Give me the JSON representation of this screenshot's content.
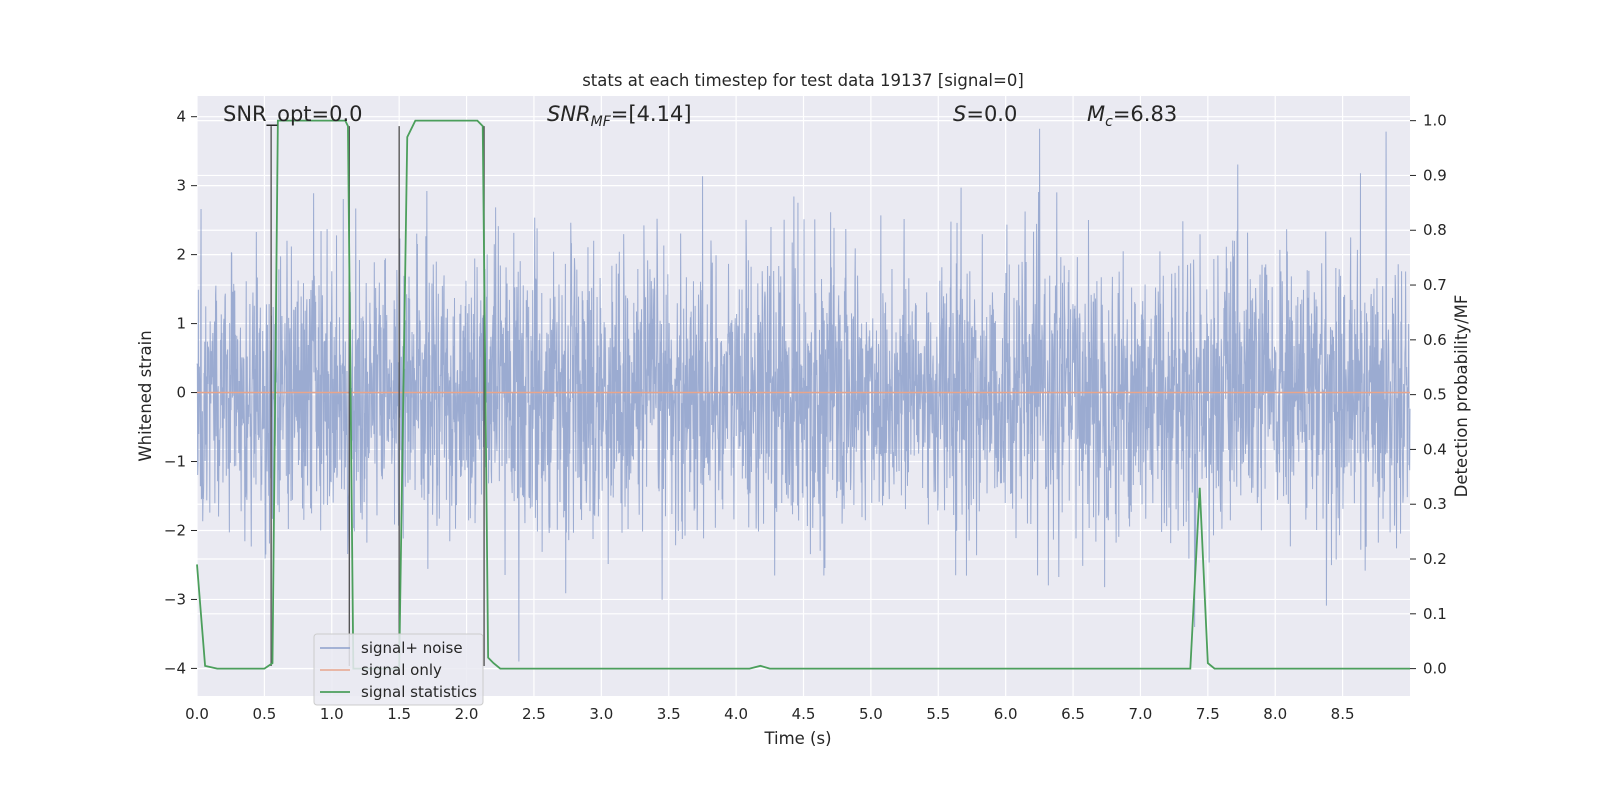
{
  "chart_data": {
    "type": "line",
    "title": "stats at each timestep for test data 19137 [signal=0]",
    "xlabel": "Time (s)",
    "ylabel_left": "Whitened strain",
    "ylabel_right": "Detection probability/MF",
    "xlim": [
      0.0,
      9.0
    ],
    "ylim_left": [
      -4.4,
      4.3
    ],
    "ylim_right": [
      -0.05,
      1.045
    ],
    "x_ticks": [
      "0.0",
      "0.5",
      "1.0",
      "1.5",
      "2.0",
      "2.5",
      "3.0",
      "3.5",
      "4.0",
      "4.5",
      "5.0",
      "5.5",
      "6.0",
      "6.5",
      "7.0",
      "7.5",
      "8.0",
      "8.5"
    ],
    "y_ticks_left": [
      "4",
      "3",
      "2",
      "1",
      "0",
      "−1",
      "−2",
      "−3",
      "−4"
    ],
    "y_ticks_right": [
      "1.0",
      "0.9",
      "0.8",
      "0.7",
      "0.6",
      "0.5",
      "0.4",
      "0.3",
      "0.2",
      "0.1",
      "0.0"
    ],
    "grid": true,
    "legend_position": "lower-left",
    "annotations": {
      "snr_opt": "SNR_opt=0.0",
      "snr_mf_main": "SNR",
      "snr_mf_sub": "MF",
      "snr_mf_value": "=[4.14]",
      "s_main": "S",
      "s_value": "=0.0",
      "mc_main": "M",
      "mc_sub": "c",
      "mc_value": "=6.83"
    },
    "series": [
      {
        "name": "signal+ noise",
        "axis": "left",
        "color": "#8da0cb",
        "description_values": "whitened strain noise, approx. range -3.9 to 3.9 across 0 to 9 s"
      },
      {
        "name": "signal only",
        "axis": "left",
        "color": "#e8a58c",
        "x": [
          0.0,
          9.0
        ],
        "y": [
          0.0,
          0.0
        ]
      },
      {
        "name": "signal statistics",
        "axis": "right",
        "color": "#4c9f5c",
        "x": [
          0.0,
          0.06,
          0.15,
          0.5,
          0.56,
          0.6,
          0.65,
          0.7,
          1.1,
          1.12,
          1.16,
          1.2,
          1.5,
          1.56,
          1.62,
          1.7,
          2.08,
          2.12,
          2.16,
          2.2,
          2.25,
          3.0,
          4.0,
          4.1,
          4.18,
          4.25,
          5.0,
          6.0,
          7.0,
          7.37,
          7.44,
          7.5,
          7.55,
          8.0,
          9.0
        ],
        "y": [
          0.19,
          0.005,
          0.0,
          0.0,
          0.01,
          1.0,
          1.0,
          1.0,
          1.0,
          0.99,
          0.0,
          0.0,
          0.0,
          0.97,
          1.0,
          1.0,
          1.0,
          0.99,
          0.02,
          0.01,
          0.0,
          0.0,
          0.0,
          0.0,
          0.005,
          0.0,
          0.0,
          0.0,
          0.0,
          0.0,
          0.33,
          0.01,
          0.0,
          0.0,
          0.0
        ]
      }
    ],
    "markers": {
      "description": "thin dark vertical lines at detection transitions",
      "x": [
        0.55,
        1.13,
        1.5,
        2.13
      ],
      "y_top_right": [
        0.99,
        0.99,
        0.99,
        0.99
      ],
      "color": "#4d4d4d"
    },
    "colors": {
      "axes_bg": "#eaeaf2",
      "grid": "#ffffff"
    }
  }
}
